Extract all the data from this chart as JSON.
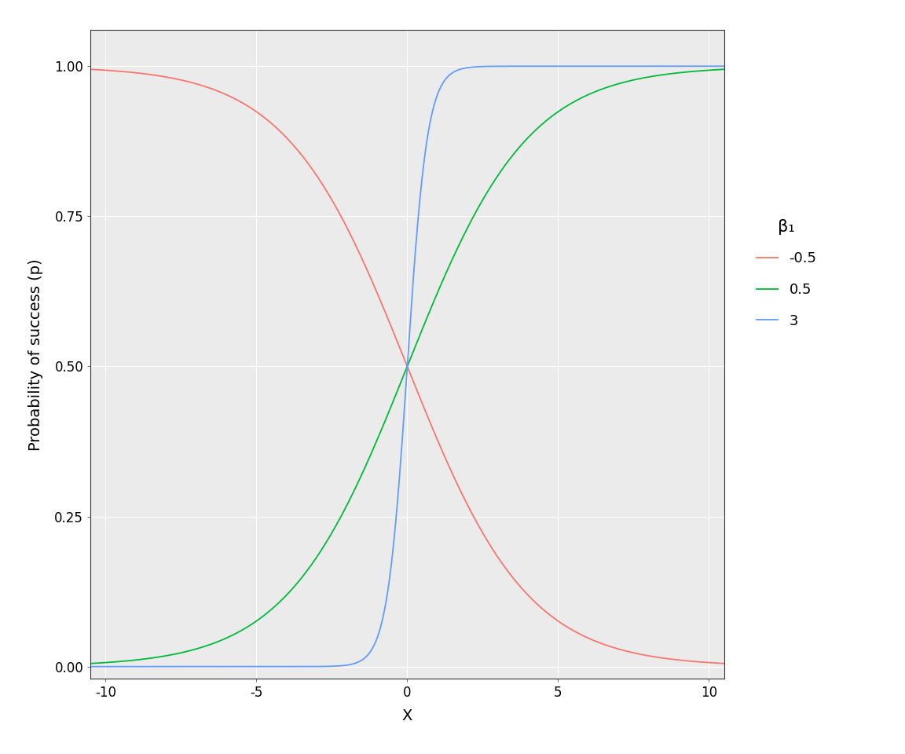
{
  "title": "",
  "xlabel": "X",
  "ylabel": "Probability of success (p)",
  "xlim": [
    -10.5,
    10.5
  ],
  "ylim": [
    -0.02,
    1.06
  ],
  "xticks": [
    -10,
    -5,
    0,
    5,
    10
  ],
  "yticks": [
    0.0,
    0.25,
    0.5,
    0.75,
    1.0
  ],
  "beta0": 0,
  "betas": [
    -0.5,
    0.5,
    3
  ],
  "colors": [
    "#F8766D",
    "#00BA38",
    "#619CFF"
  ],
  "labels": [
    "-0.5",
    "0.5",
    "3"
  ],
  "legend_title": "β₁",
  "background_color": "#FFFFFF",
  "panel_background": "#EBEBEB",
  "grid_color": "#FFFFFF",
  "linewidth": 1.3,
  "n_points": 2000
}
